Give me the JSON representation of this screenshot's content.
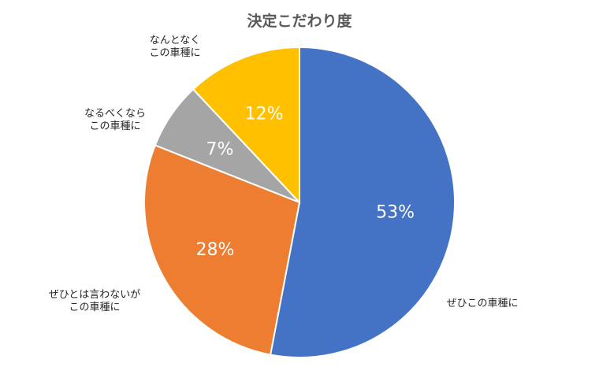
{
  "chart_data": {
    "type": "pie",
    "title": "決定こだわり度",
    "slices": [
      {
        "label": [
          "ぜひこの車種に"
        ],
        "value": 53,
        "display": "53%",
        "color": "#4472C4"
      },
      {
        "label": [
          "ぜひとは言わないが",
          "この車種に"
        ],
        "value": 28,
        "display": "28%",
        "color": "#ED7D31"
      },
      {
        "label": [
          "なるべくなら",
          "この車種に"
        ],
        "value": 7,
        "display": "7%",
        "color": "#A5A5A5"
      },
      {
        "label": [
          "なんとなく",
          "この車種に"
        ],
        "value": 12,
        "display": "12%",
        "color": "#FFC000"
      }
    ],
    "start": "12 o'clock",
    "direction": "clockwise",
    "legend": "none"
  }
}
